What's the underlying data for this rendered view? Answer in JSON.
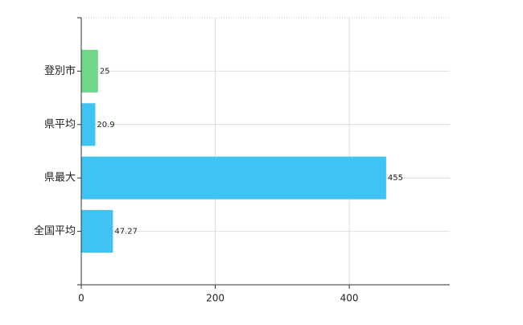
{
  "chart_data": {
    "type": "bar",
    "orientation": "horizontal",
    "categories": [
      "登別市",
      "県平均",
      "県最大",
      "全国平均"
    ],
    "values": [
      25,
      20.9,
      455,
      47.27
    ],
    "colors": [
      "#72d68a",
      "#3ec3f3",
      "#3ec3f3",
      "#3ec3f3"
    ],
    "xlim": [
      0,
      550
    ],
    "xticks": [
      0,
      200,
      400
    ],
    "grid": true
  }
}
